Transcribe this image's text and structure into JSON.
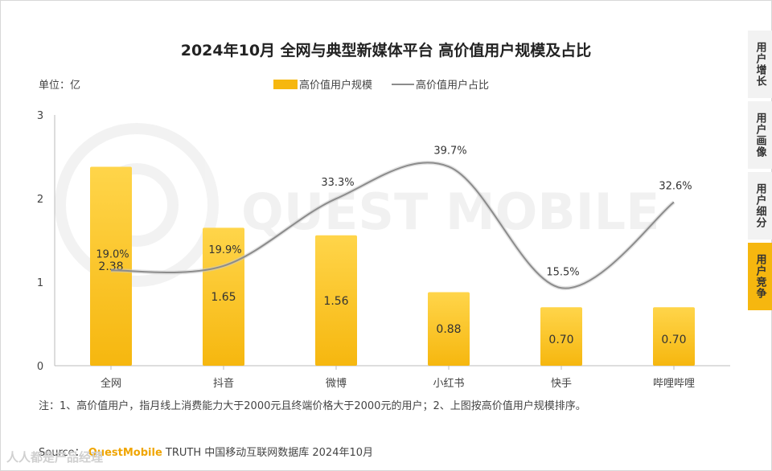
{
  "title": "2024年10月 全网与典型新媒体平台 高价值用户规模及占比",
  "unit_label": "单位：亿",
  "legend": {
    "bar": "高价值用户规模",
    "line": "高价值用户占比"
  },
  "note": "注：1、高价值用户，指月线上消费能力大于2000元且终端价格大于2000元的用户；2、上图按高价值用户规模排序。",
  "source": {
    "prefix": "Source：",
    "brand": "QuestMobile",
    "suffix": " TRUTH 中国移动互联网数据库 2024年10月"
  },
  "watermark_logo": "QUEST MOBILE",
  "corner_mark": "人人都是产品经理",
  "tabs": [
    {
      "label": "用户增长",
      "active": false
    },
    {
      "label": "用户画像",
      "active": false
    },
    {
      "label": "用户细分",
      "active": false
    },
    {
      "label": "用户竞争",
      "active": true
    }
  ],
  "colors": {
    "bar": "#f6b70f",
    "bar_light": "#ffd54a",
    "line": "#8c8c8c",
    "tab_active": "#f6b70f"
  },
  "chart_data": {
    "type": "bar",
    "categories": [
      "全网",
      "抖音",
      "微博",
      "小红书",
      "快手",
      "哔哩哔哩"
    ],
    "series": [
      {
        "name": "高价值用户规模",
        "type": "bar",
        "values": [
          2.38,
          1.65,
          1.56,
          0.88,
          0.7,
          0.7
        ],
        "labels": [
          "2.38",
          "1.65",
          "1.56",
          "0.88",
          "0.70",
          "0.70"
        ]
      },
      {
        "name": "高价值用户占比",
        "type": "line",
        "values": [
          19.0,
          19.9,
          33.3,
          39.7,
          15.5,
          32.6
        ],
        "labels": [
          "19.0%",
          "19.9%",
          "33.3%",
          "39.7%",
          "15.5%",
          "32.6%"
        ]
      }
    ],
    "y_ticks": [
      "0",
      "1",
      "2",
      "3"
    ],
    "ylim": [
      0,
      3
    ],
    "grid": false
  }
}
